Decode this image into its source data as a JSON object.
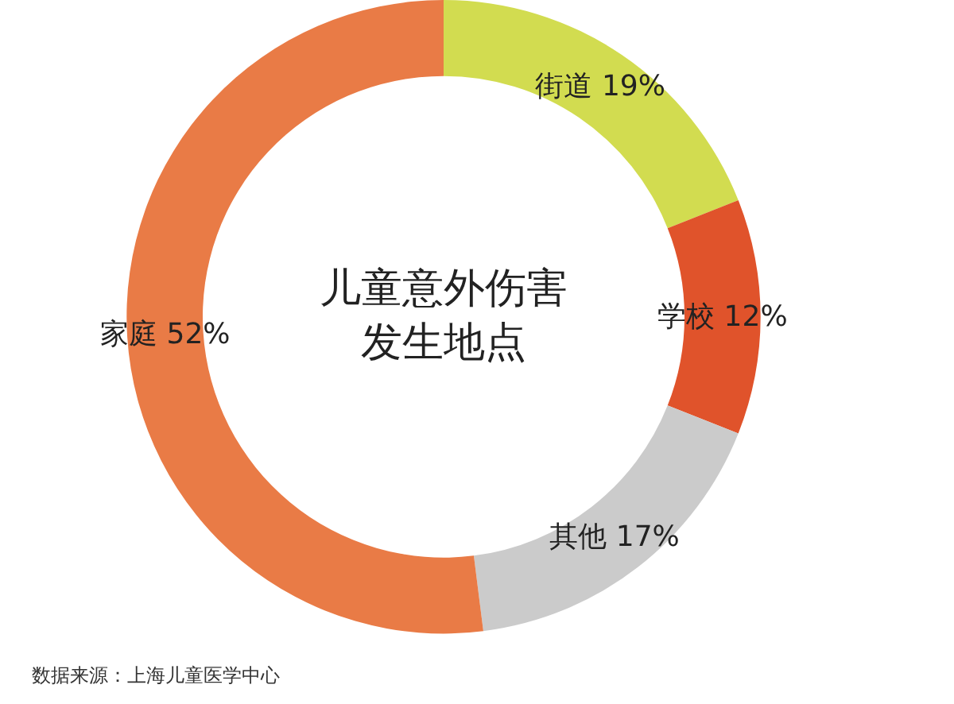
{
  "chart_data": {
    "type": "donut",
    "title": "儿童意外伤害发生地点",
    "categories": [
      "街道",
      "学校",
      "其他",
      "家庭"
    ],
    "values": [
      19,
      12,
      17,
      52
    ],
    "value_labels": [
      "19%",
      "12%",
      "17%",
      "52%"
    ],
    "colors": [
      "#d2dc50",
      "#e0532b",
      "#cbcbcb",
      "#e97b46"
    ],
    "legend": false,
    "annotations": [
      "数据来源：上海儿童医学中心"
    ]
  }
}
